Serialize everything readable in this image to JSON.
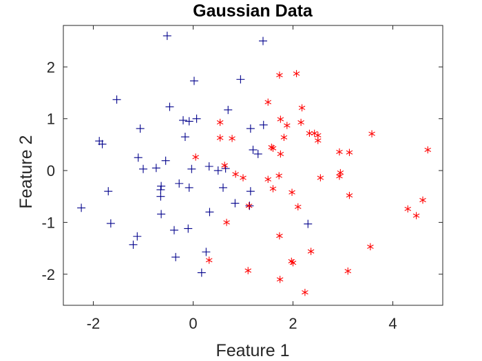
{
  "chart_data": {
    "type": "scatter",
    "title": "Gaussian Data",
    "xlabel": "Feature 1",
    "ylabel": "Feature 2",
    "xlim": [
      -2.6,
      5.0
    ],
    "ylim": [
      -2.6,
      2.8
    ],
    "xticks": [
      -2,
      0,
      2,
      4
    ],
    "yticks": [
      -2,
      -1,
      0,
      1,
      2
    ],
    "xtick_labels": [
      "-2",
      "0",
      "2",
      "4"
    ],
    "ytick_labels": [
      "-2",
      "-1",
      "0",
      "1",
      "2"
    ],
    "grid": false,
    "legend": null,
    "series": [
      {
        "marker": "plus",
        "color": "#00008B",
        "points": [
          [
            -0.52,
            2.6
          ],
          [
            1.4,
            2.5
          ],
          [
            0.02,
            1.73
          ],
          [
            0.95,
            1.76
          ],
          [
            -1.53,
            1.37
          ],
          [
            -0.47,
            1.23
          ],
          [
            0.7,
            1.17
          ],
          [
            -0.2,
            0.97
          ],
          [
            -0.08,
            0.95
          ],
          [
            0.07,
            1.0
          ],
          [
            1.41,
            0.88
          ],
          [
            -1.06,
            0.81
          ],
          [
            1.15,
            0.81
          ],
          [
            -1.88,
            0.57
          ],
          [
            -1.82,
            0.51
          ],
          [
            -0.16,
            0.65
          ],
          [
            1.2,
            0.4
          ],
          [
            1.3,
            0.32
          ],
          [
            -1.1,
            0.25
          ],
          [
            -0.55,
            0.19
          ],
          [
            -1.0,
            0.03
          ],
          [
            -0.74,
            0.05
          ],
          [
            -0.03,
            0.03
          ],
          [
            0.32,
            0.08
          ],
          [
            0.5,
            0.0
          ],
          [
            0.65,
            0.04
          ],
          [
            -1.7,
            -0.4
          ],
          [
            -0.64,
            -0.3
          ],
          [
            -0.65,
            -0.37
          ],
          [
            -0.28,
            -0.25
          ],
          [
            -0.08,
            -0.33
          ],
          [
            0.6,
            -0.33
          ],
          [
            -0.65,
            -0.5
          ],
          [
            1.15,
            -0.4
          ],
          [
            0.84,
            -0.63
          ],
          [
            1.13,
            -0.68
          ],
          [
            -1.65,
            -1.02
          ],
          [
            -0.64,
            -0.84
          ],
          [
            0.33,
            -0.8
          ],
          [
            2.3,
            -1.03
          ],
          [
            -1.12,
            -1.27
          ],
          [
            -0.1,
            -1.12
          ],
          [
            -0.38,
            -1.15
          ],
          [
            -1.2,
            -1.43
          ],
          [
            0.26,
            -1.57
          ],
          [
            -0.35,
            -1.67
          ],
          [
            0.17,
            -1.97
          ],
          [
            -2.24,
            -0.72
          ]
        ]
      },
      {
        "marker": "asterisk",
        "color": "#FF0000",
        "points": [
          [
            1.73,
            1.84
          ],
          [
            2.07,
            1.87
          ],
          [
            1.5,
            1.32
          ],
          [
            2.18,
            1.21
          ],
          [
            0.54,
            0.93
          ],
          [
            1.75,
            0.99
          ],
          [
            2.16,
            0.93
          ],
          [
            1.88,
            0.87
          ],
          [
            2.33,
            0.72
          ],
          [
            2.43,
            0.72
          ],
          [
            2.5,
            0.68
          ],
          [
            3.58,
            0.71
          ],
          [
            0.54,
            0.63
          ],
          [
            0.78,
            0.62
          ],
          [
            1.82,
            0.64
          ],
          [
            2.5,
            0.58
          ],
          [
            1.57,
            0.45
          ],
          [
            1.6,
            0.43
          ],
          [
            2.93,
            0.36
          ],
          [
            3.13,
            0.35
          ],
          [
            4.7,
            0.4
          ],
          [
            1.75,
            0.32
          ],
          [
            0.05,
            0.26
          ],
          [
            0.63,
            0.1
          ],
          [
            0.85,
            -0.07
          ],
          [
            1.0,
            -0.14
          ],
          [
            1.5,
            -0.17
          ],
          [
            1.72,
            -0.1
          ],
          [
            2.95,
            -0.04
          ],
          [
            2.93,
            -0.11
          ],
          [
            2.55,
            -0.14
          ],
          [
            1.6,
            -0.35
          ],
          [
            1.98,
            -0.42
          ],
          [
            3.13,
            -0.48
          ],
          [
            2.1,
            -0.7
          ],
          [
            1.12,
            -0.68
          ],
          [
            4.6,
            -0.57
          ],
          [
            4.3,
            -0.74
          ],
          [
            4.47,
            -0.87
          ],
          [
            0.67,
            -1.0
          ],
          [
            1.73,
            -1.26
          ],
          [
            3.55,
            -1.47
          ],
          [
            2.36,
            -1.56
          ],
          [
            0.32,
            -1.73
          ],
          [
            1.97,
            -1.75
          ],
          [
            2.0,
            -1.78
          ],
          [
            1.1,
            -1.93
          ],
          [
            3.1,
            -1.94
          ],
          [
            1.74,
            -2.1
          ],
          [
            2.24,
            -2.35
          ]
        ]
      }
    ]
  }
}
